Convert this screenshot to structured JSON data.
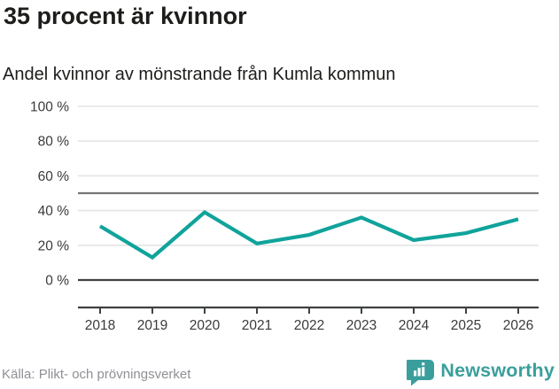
{
  "header": {
    "title": "35 procent är kvinnor",
    "subtitle": "Andel kvinnor av mönstrande från Kumla kommun"
  },
  "footer": {
    "source": "Källa: Plikt- och prövningsverket",
    "brand": {
      "name": "Newsworthy",
      "icon": "bar-chart-speech-bubble-icon"
    }
  },
  "colors": {
    "accent_line": "#10a39b",
    "brand_teal": "#3a9f9c",
    "grid_light": "#e4e4e4",
    "reference_gray": "#747678",
    "axis_dark": "#3f4142",
    "text_dark": "#1d1d1b",
    "tick_label": "#3a3a3a",
    "source_gray": "#8f8f96",
    "background": "#ffffff"
  },
  "chart_data": {
    "type": "line",
    "title": "35 procent är kvinnor",
    "subtitle": "Andel kvinnor av mönstrande från Kumla kommun",
    "x": [
      "2018",
      "2019",
      "2020",
      "2021",
      "2022",
      "2023",
      "2024",
      "2025",
      "2026"
    ],
    "series": [
      {
        "name": "Andel kvinnor av mönstrande",
        "color": "#10a39b",
        "values": [
          31,
          13,
          39,
          21,
          26,
          36,
          23,
          27,
          35
        ]
      }
    ],
    "xlabel": "",
    "ylabel": "",
    "ylim": [
      0,
      100
    ],
    "yticks": [
      0,
      20,
      40,
      60,
      80,
      100
    ],
    "ytick_suffix": " %",
    "reference_line": 50,
    "grid": "horizontal",
    "legend": "none"
  }
}
